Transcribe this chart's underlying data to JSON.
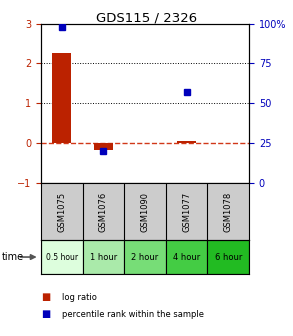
{
  "title": "GDS115 / 2326",
  "samples": [
    "GSM1075",
    "GSM1076",
    "GSM1090",
    "GSM1077",
    "GSM1078"
  ],
  "time_labels": [
    "0.5 hour",
    "1 hour",
    "2 hour",
    "4 hour",
    "6 hour"
  ],
  "time_colors": [
    "#ddfedd",
    "#aaeaaa",
    "#77dd77",
    "#44cc44",
    "#22bb22"
  ],
  "log_ratio": [
    2.25,
    -0.18,
    0.0,
    0.05,
    0.0
  ],
  "percentile": [
    98,
    20,
    null,
    57,
    null
  ],
  "ylim_left": [
    -1,
    3
  ],
  "ylim_right": [
    0,
    100
  ],
  "bar_color": "#bb2200",
  "dot_color": "#0000bb",
  "zeroline_color": "#cc2200",
  "dotted_lines": [
    1,
    2
  ],
  "bg_color": "#ffffff",
  "sample_bg": "#cccccc",
  "legend_log": "log ratio",
  "legend_pct": "percentile rank within the sample",
  "time_label": "time",
  "left_ticks": [
    -1,
    0,
    1,
    2,
    3
  ],
  "right_ticks": [
    0,
    25,
    50,
    75,
    100
  ]
}
